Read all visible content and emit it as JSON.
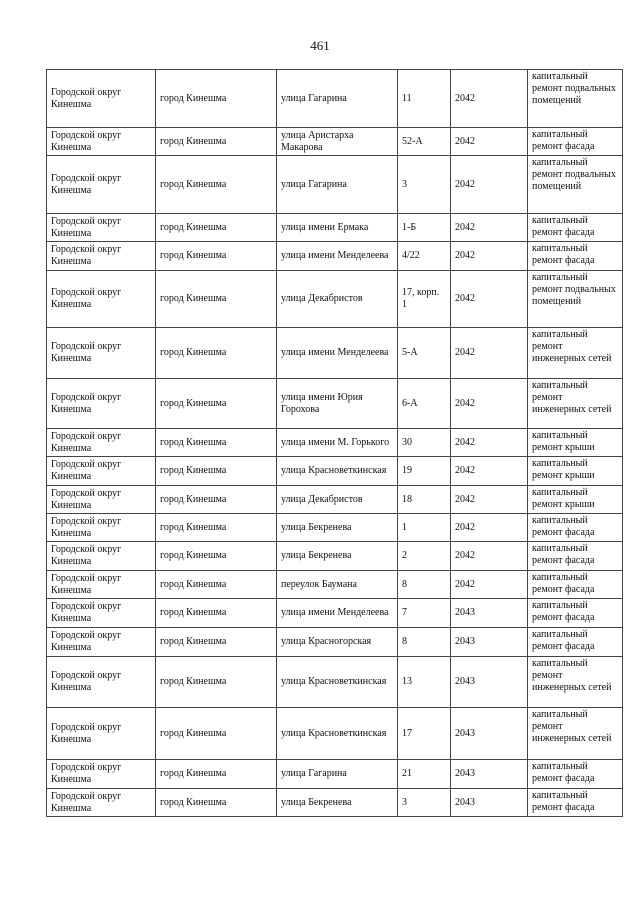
{
  "page_number": "461",
  "rows": [
    {
      "district": "Городской округ Кинешма",
      "city": "город Кинешма",
      "street": "улица Гагарина",
      "house": "11",
      "year": "2042",
      "work": "капитальный ремонт подвальных помещений"
    },
    {
      "district": "Городской округ Кинешма",
      "city": "город Кинешма",
      "street": "улица Аристарха Макарова",
      "house": "52-А",
      "year": "2042",
      "work": "капитальный ремонт фасада"
    },
    {
      "district": "Городской округ Кинешма",
      "city": "город Кинешма",
      "street": "улица Гагарина",
      "house": "3",
      "year": "2042",
      "work": "капитальный ремонт подвальных помещений"
    },
    {
      "district": "Городской округ Кинешма",
      "city": "город Кинешма",
      "street": "улица имени Ермака",
      "house": "1-Б",
      "year": "2042",
      "work": "капитальный ремонт фасада"
    },
    {
      "district": "Городской округ Кинешма",
      "city": "город Кинешма",
      "street": "улица имени Менделеева",
      "house": "4/22",
      "year": "2042",
      "work": "капитальный ремонт фасада"
    },
    {
      "district": "Городской округ Кинешма",
      "city": "город Кинешма",
      "street": "улица Декабристов",
      "house": "17, корп. 1",
      "year": "2042",
      "work": "капитальный ремонт подвальных помещений"
    },
    {
      "district": "Городской округ Кинешма",
      "city": "город Кинешма",
      "street": "улица имени Менделеева",
      "house": "5-А",
      "year": "2042",
      "work": "капитальный ремонт инженерных сетей"
    },
    {
      "district": "Городской округ Кинешма",
      "city": "город Кинешма",
      "street": "улица имени Юрия Горохова",
      "house": "6-А",
      "year": "2042",
      "work": "капитальный ремонт инженерных сетей"
    },
    {
      "district": "Городской округ Кинешма",
      "city": "город Кинешма",
      "street": "улица имени М. Горького",
      "house": "30",
      "year": "2042",
      "work": "капитальный ремонт крыши"
    },
    {
      "district": "Городской округ Кинешма",
      "city": "город Кинешма",
      "street": "улица Красноветкинская",
      "house": "19",
      "year": "2042",
      "work": "капитальный ремонт крыши"
    },
    {
      "district": "Городской округ Кинешма",
      "city": "город Кинешма",
      "street": "улица Декабристов",
      "house": "18",
      "year": "2042",
      "work": "капитальный ремонт крыши"
    },
    {
      "district": "Городской округ Кинешма",
      "city": "город Кинешма",
      "street": "улица Бекренева",
      "house": "1",
      "year": "2042",
      "work": "капитальный ремонт фасада"
    },
    {
      "district": "Городской округ Кинешма",
      "city": "город Кинешма",
      "street": "улица Бекренева",
      "house": "2",
      "year": "2042",
      "work": "капитальный ремонт фасада"
    },
    {
      "district": "Городской округ Кинешма",
      "city": "город Кинешма",
      "street": "переулок Баумана",
      "house": "8",
      "year": "2042",
      "work": "капитальный ремонт фасада"
    },
    {
      "district": "Городской округ Кинешма",
      "city": "город Кинешма",
      "street": "улица имени Менделеева",
      "house": "7",
      "year": "2043",
      "work": "капитальный ремонт фасада"
    },
    {
      "district": "Городской округ Кинешма",
      "city": "город Кинешма",
      "street": "улица Красногорская",
      "house": "8",
      "year": "2043",
      "work": "капитальный ремонт фасада"
    },
    {
      "district": "Городской округ Кинешма",
      "city": "город Кинешма",
      "street": "улица Красноветкинская",
      "house": "13",
      "year": "2043",
      "work": "капитальный ремонт инженерных сетей"
    },
    {
      "district": "Городской округ Кинешма",
      "city": "город Кинешма",
      "street": "улица Красноветкинская",
      "house": "17",
      "year": "2043",
      "work": "капитальный ремонт инженерных сетей"
    },
    {
      "district": "Городской округ Кинешма",
      "city": "город Кинешма",
      "street": "улица Гагарина",
      "house": "21",
      "year": "2043",
      "work": "капитальный ремонт фасада"
    },
    {
      "district": "Городской округ Кинешма",
      "city": "город Кинешма",
      "street": "улица Бекренева",
      "house": "3",
      "year": "2043",
      "work": "капитальный ремонт фасада"
    }
  ]
}
